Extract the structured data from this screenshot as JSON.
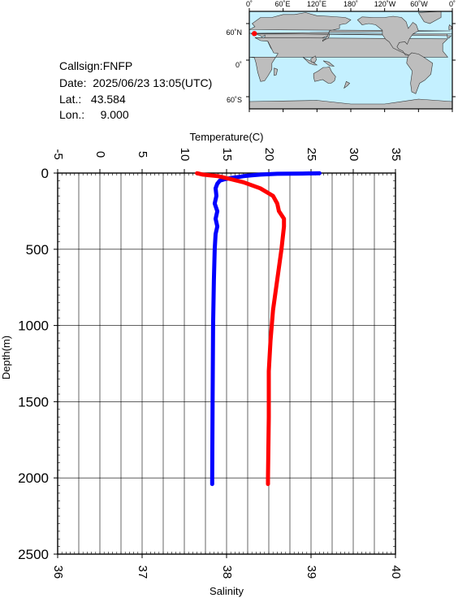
{
  "header": {
    "callsign_line": "Callsign:FNFP",
    "date_line": "Date:  2025/06/23 13:05(UTC)",
    "lat_line": "Lat.:   43.584",
    "lon_line": "Lon.:     9.000"
  },
  "map": {
    "top_labels": [
      "0˚",
      "60˚E",
      "120˚E",
      "180˚",
      "120˚W",
      "60˚W",
      "0˚"
    ],
    "left_labels": [
      "60˚N",
      "0˚",
      "60˚S"
    ],
    "ocean_color": "#c4f0ff",
    "land_color": "#bdbdbd",
    "marker_color": "#ff0000",
    "marker": {
      "lat": 43.584,
      "lon": 9.0
    }
  },
  "chart_data": {
    "type": "line",
    "xlabel_top": "Temperature(C)",
    "xlabel_bottom": "Salinity",
    "ylabel": "Depth(m)",
    "temperature_axis": {
      "range": [
        -5,
        35
      ],
      "ticks": [
        "-5",
        "0",
        "5",
        "10",
        "15",
        "20",
        "25",
        "30",
        "35"
      ]
    },
    "salinity_axis": {
      "range": [
        36,
        40
      ],
      "ticks": [
        "36",
        "37",
        "38",
        "39",
        "40"
      ]
    },
    "depth_axis": {
      "range": [
        0,
        2500
      ],
      "ticks": [
        "0",
        "500",
        "1000",
        "1500",
        "2000",
        "2500"
      ]
    },
    "grid": true,
    "series": [
      {
        "color": "#0000ff",
        "quantity": "temperature",
        "points": [
          [
            26,
            1
          ],
          [
            24,
            3
          ],
          [
            21,
            5
          ],
          [
            19,
            10
          ],
          [
            18,
            15
          ],
          [
            17,
            20
          ],
          [
            16.5,
            25
          ],
          [
            15.8,
            30
          ],
          [
            14.8,
            40
          ],
          [
            14.2,
            50
          ],
          [
            13.9,
            70
          ],
          [
            13.7,
            100
          ],
          [
            13.8,
            150
          ],
          [
            13.6,
            200
          ],
          [
            13.9,
            250
          ],
          [
            13.7,
            300
          ],
          [
            13.9,
            350
          ],
          [
            13.7,
            400
          ],
          [
            13.6,
            500
          ],
          [
            13.5,
            700
          ],
          [
            13.4,
            1000
          ],
          [
            13.35,
            1500
          ],
          [
            13.3,
            2000
          ],
          [
            13.3,
            2040
          ]
        ]
      },
      {
        "color": "#ff0000",
        "quantity": "salinity",
        "points": [
          [
            37.65,
            1
          ],
          [
            37.72,
            10
          ],
          [
            37.9,
            20
          ],
          [
            38.05,
            40
          ],
          [
            38.2,
            60
          ],
          [
            38.4,
            100
          ],
          [
            38.55,
            150
          ],
          [
            38.6,
            200
          ],
          [
            38.62,
            250
          ],
          [
            38.68,
            300
          ],
          [
            38.68,
            350
          ],
          [
            38.65,
            500
          ],
          [
            38.6,
            700
          ],
          [
            38.55,
            900
          ],
          [
            38.52,
            1100
          ],
          [
            38.5,
            1300
          ],
          [
            38.5,
            1600
          ],
          [
            38.49,
            2000
          ],
          [
            38.49,
            2040
          ]
        ]
      }
    ]
  }
}
